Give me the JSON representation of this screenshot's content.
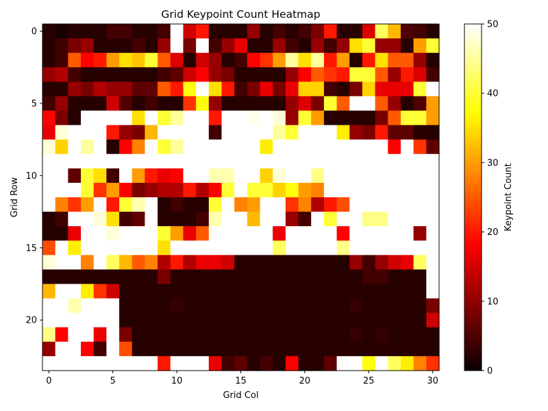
{
  "chart_data": {
    "type": "heatmap",
    "title": "Grid Keypoint Count Heatmap",
    "xlabel": "Grid Col",
    "ylabel": "Grid Row",
    "colorbar_label": "Keypoint Count",
    "colormap": "hot",
    "vmin": 0,
    "vmax": 50,
    "n_rows": 24,
    "n_cols": 31,
    "x_ticks": [
      0,
      5,
      10,
      15,
      20,
      25,
      30
    ],
    "y_ticks": [
      0,
      5,
      10,
      15,
      20
    ],
    "colorbar_ticks": [
      0,
      10,
      20,
      30,
      40,
      50
    ],
    "values": [
      [
        2,
        1,
        2,
        2,
        2,
        4,
        4,
        2,
        2,
        4,
        50,
        14,
        20,
        2,
        2,
        2,
        10,
        2,
        4,
        2,
        4,
        8,
        20,
        2,
        2,
        15,
        42,
        32,
        5,
        4,
        2
      ],
      [
        2,
        4,
        8,
        10,
        2,
        2,
        2,
        4,
        2,
        10,
        50,
        8,
        50,
        4,
        10,
        16,
        2,
        2,
        10,
        4,
        2,
        10,
        4,
        10,
        35,
        40,
        10,
        10,
        2,
        30,
        40
      ],
      [
        2,
        4,
        25,
        18,
        20,
        30,
        35,
        33,
        40,
        25,
        15,
        2,
        14,
        10,
        2,
        4,
        18,
        22,
        30,
        45,
        35,
        45,
        20,
        30,
        2,
        20,
        35,
        25,
        25,
        10,
        2
      ],
      [
        10,
        12,
        4,
        2,
        2,
        2,
        2,
        2,
        2,
        4,
        6,
        14,
        18,
        10,
        8,
        2,
        2,
        2,
        2,
        10,
        18,
        25,
        22,
        20,
        40,
        40,
        25,
        10,
        20,
        15,
        4
      ],
      [
        2,
        2,
        10,
        8,
        12,
        10,
        10,
        6,
        6,
        25,
        20,
        38,
        50,
        35,
        20,
        4,
        8,
        16,
        8,
        16,
        34,
        34,
        4,
        2,
        8,
        34,
        16,
        16,
        16,
        40,
        50
      ],
      [
        4,
        10,
        2,
        2,
        2,
        14,
        5,
        2,
        4,
        2,
        2,
        22,
        38,
        10,
        2,
        2,
        2,
        2,
        2,
        10,
        15,
        8,
        40,
        25,
        50,
        50,
        25,
        10,
        2,
        5,
        30
      ],
      [
        18,
        8,
        2,
        50,
        50,
        50,
        50,
        35,
        50,
        40,
        45,
        50,
        50,
        20,
        50,
        50,
        49,
        50,
        48,
        10,
        40,
        30,
        2,
        2,
        2,
        2,
        8,
        25,
        40,
        40,
        30
      ],
      [
        16,
        48,
        50,
        50,
        50,
        20,
        10,
        8,
        32,
        50,
        50,
        50,
        50,
        4,
        50,
        50,
        50,
        50,
        45,
        40,
        50,
        50,
        50,
        36,
        10,
        8,
        20,
        6,
        6,
        2,
        2
      ],
      [
        48,
        34,
        50,
        45,
        50,
        2,
        18,
        28,
        50,
        40,
        45,
        50,
        50,
        50,
        50,
        50,
        50,
        36,
        50,
        50,
        50,
        50,
        50,
        50,
        50,
        50,
        50,
        18,
        50,
        22,
        6
      ],
      [
        50,
        50,
        50,
        50,
        50,
        50,
        50,
        50,
        50,
        50,
        50,
        50,
        50,
        50,
        50,
        50,
        50,
        50,
        50,
        50,
        50,
        50,
        50,
        50,
        50,
        50,
        50,
        50,
        50,
        50,
        50
      ],
      [
        50,
        50,
        6,
        40,
        35,
        4,
        50,
        30,
        20,
        16,
        18,
        50,
        50,
        46,
        46,
        50,
        50,
        34,
        48,
        50,
        50,
        44,
        50,
        50,
        50,
        50,
        50,
        50,
        50,
        50,
        50
      ],
      [
        50,
        50,
        50,
        40,
        22,
        30,
        18,
        8,
        10,
        12,
        12,
        20,
        12,
        18,
        40,
        50,
        40,
        40,
        34,
        38,
        30,
        28,
        50,
        50,
        50,
        50,
        50,
        50,
        50,
        50,
        50
      ],
      [
        50,
        28,
        22,
        30,
        50,
        20,
        40,
        46,
        50,
        2,
        4,
        2,
        2,
        40,
        50,
        28,
        30,
        50,
        50,
        22,
        28,
        12,
        20,
        24,
        50,
        50,
        50,
        50,
        50,
        50,
        50
      ],
      [
        2,
        4,
        50,
        50,
        48,
        35,
        4,
        6,
        50,
        2,
        2,
        2,
        4,
        46,
        50,
        50,
        32,
        50,
        50,
        10,
        4,
        50,
        40,
        50,
        50,
        44,
        44,
        50,
        50,
        50,
        50
      ],
      [
        2,
        2,
        16,
        50,
        50,
        48,
        50,
        50,
        50,
        40,
        30,
        16,
        25,
        50,
        50,
        50,
        50,
        50,
        16,
        50,
        50,
        50,
        50,
        18,
        50,
        50,
        50,
        50,
        50,
        10,
        50
      ],
      [
        24,
        50,
        36,
        50,
        50,
        50,
        50,
        50,
        50,
        35,
        50,
        50,
        50,
        50,
        50,
        50,
        50,
        50,
        42,
        50,
        50,
        50,
        50,
        44,
        50,
        50,
        50,
        50,
        50,
        50,
        50
      ],
      [
        48,
        50,
        50,
        28,
        50,
        42,
        32,
        25,
        28,
        12,
        20,
        12,
        16,
        16,
        14,
        2,
        2,
        2,
        2,
        2,
        2,
        2,
        2,
        2,
        10,
        4,
        10,
        14,
        16,
        42,
        50
      ],
      [
        2,
        2,
        2,
        2,
        2,
        2,
        2,
        2,
        2,
        8,
        2,
        2,
        2,
        2,
        2,
        2,
        2,
        2,
        2,
        2,
        2,
        2,
        2,
        2,
        2,
        4,
        4,
        2,
        2,
        2,
        50
      ],
      [
        32,
        50,
        50,
        36,
        22,
        14,
        2,
        2,
        2,
        2,
        2,
        2,
        2,
        2,
        2,
        2,
        2,
        2,
        2,
        2,
        2,
        2,
        2,
        2,
        2,
        2,
        2,
        2,
        2,
        2,
        50
      ],
      [
        50,
        50,
        46,
        50,
        50,
        50,
        2,
        2,
        2,
        2,
        3,
        2,
        2,
        2,
        2,
        2,
        2,
        2,
        2,
        2,
        2,
        2,
        2,
        2,
        3,
        2,
        2,
        2,
        2,
        2,
        8
      ],
      [
        50,
        50,
        50,
        50,
        50,
        50,
        2,
        2,
        2,
        2,
        2,
        2,
        2,
        2,
        2,
        2,
        2,
        2,
        2,
        2,
        2,
        2,
        2,
        2,
        2,
        2,
        2,
        2,
        2,
        2,
        14
      ],
      [
        44,
        18,
        50,
        50,
        16,
        50,
        8,
        2,
        2,
        2,
        2,
        2,
        2,
        2,
        2,
        2,
        2,
        2,
        2,
        2,
        2,
        2,
        2,
        2,
        3,
        2,
        3,
        2,
        2,
        2,
        2
      ],
      [
        10,
        50,
        50,
        18,
        4,
        50,
        24,
        2,
        2,
        2,
        2,
        2,
        2,
        2,
        2,
        2,
        2,
        2,
        2,
        2,
        2,
        2,
        2,
        2,
        2,
        2,
        2,
        2,
        2,
        2,
        2
      ],
      [
        50,
        50,
        50,
        50,
        50,
        50,
        50,
        50,
        50,
        20,
        50,
        50,
        50,
        16,
        4,
        6,
        2,
        4,
        2,
        18,
        2,
        2,
        6,
        50,
        50,
        38,
        50,
        42,
        36,
        28,
        22
      ]
    ]
  }
}
